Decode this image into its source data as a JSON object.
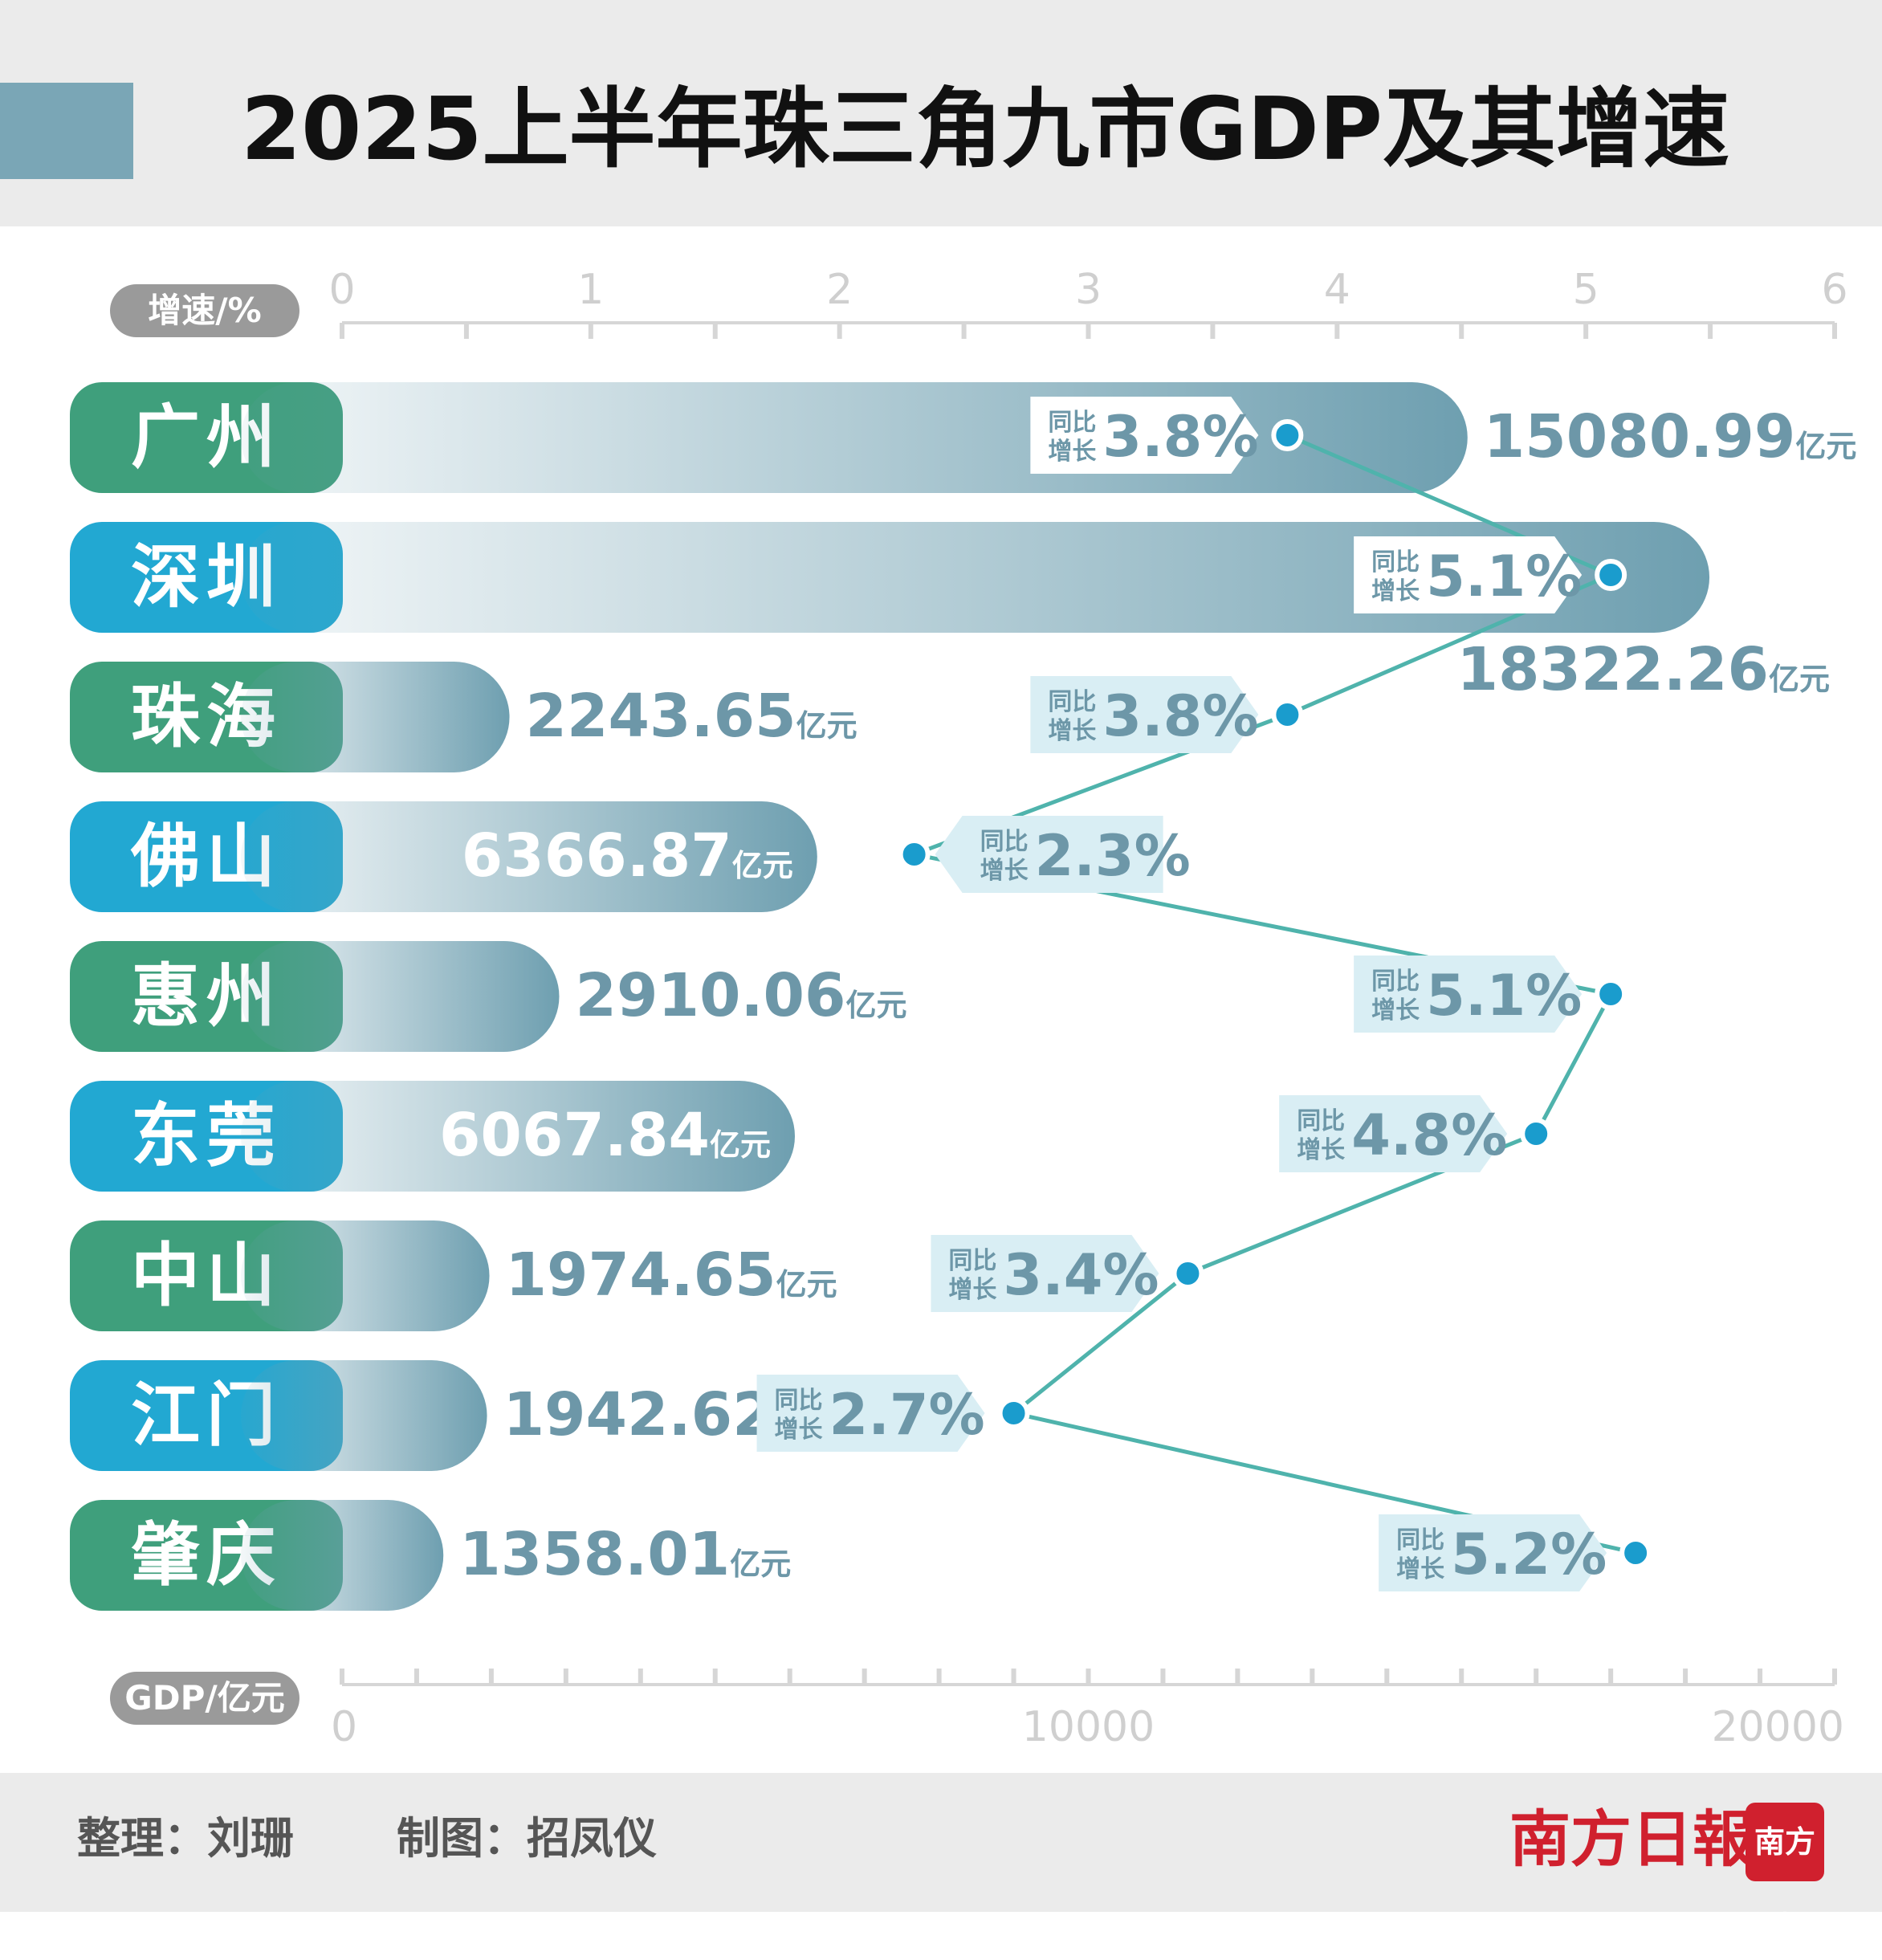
{
  "title": "2025上半年珠三角九市GDP及其增速",
  "chart_data": {
    "type": "bar",
    "categories": [
      "广州",
      "深圳",
      "珠海",
      "佛山",
      "惠州",
      "东莞",
      "中山",
      "江门",
      "肇庆"
    ],
    "series": [
      {
        "values": [
          15080.99,
          18322.26,
          2243.65,
          6366.87,
          2910.06,
          6067.84,
          1974.65,
          1942.62,
          1358.01
        ]
      },
      {
        "values": [
          3.8,
          5.1,
          3.8,
          2.3,
          5.1,
          4.8,
          3.4,
          2.7,
          5.2
        ]
      }
    ],
    "gdp_unit": "亿元",
    "growth_prefix": "同比增长",
    "growth_suffix": "%",
    "xlabel_gdp": "GDP/亿元",
    "xlabel_growth": "增速/%",
    "growth_axis": {
      "range": [
        0,
        6
      ],
      "ticks": [
        0,
        1,
        2,
        3,
        4,
        5,
        6
      ]
    },
    "gdp_axis": {
      "range": [
        0,
        20000
      ],
      "ticks": [
        0,
        10000,
        20000
      ]
    },
    "colors": {
      "green": "#3f9f7c",
      "blue": "#22a8d2",
      "bar": "#6e9fb0",
      "line": "#4fb3ac",
      "dot": "#1a9ccd",
      "label": "#6d97a8",
      "callout_bg": "#d9eef4"
    }
  },
  "footer": {
    "editor": "整理：刘珊",
    "designer": "制图：招凤仪",
    "brand": "南方日報",
    "logo": "南方+"
  }
}
